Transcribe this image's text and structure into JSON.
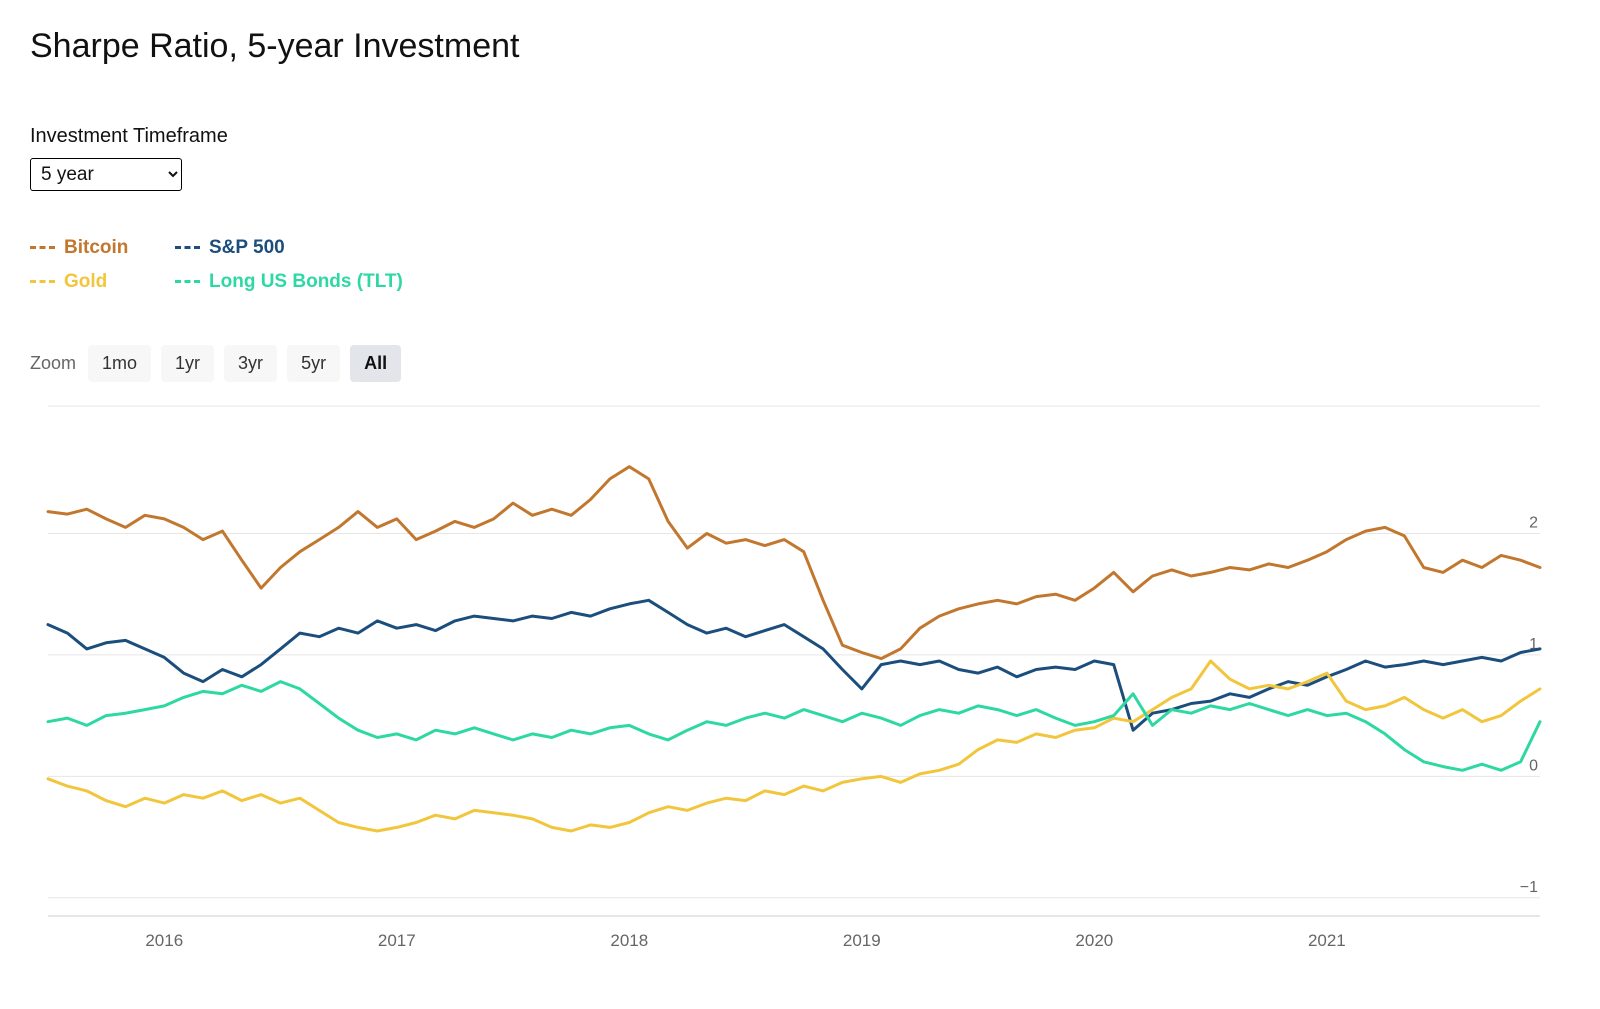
{
  "header": {
    "title": "Sharpe Ratio, 5-year Investment"
  },
  "controls": {
    "timeframe_label": "Investment Timeframe",
    "timeframe_value": "5 year"
  },
  "toolbar": {
    "zoom_label": "Zoom",
    "buttons": [
      {
        "label": "1mo",
        "active": false
      },
      {
        "label": "1yr",
        "active": false
      },
      {
        "label": "3yr",
        "active": false
      },
      {
        "label": "5yr",
        "active": false
      },
      {
        "label": "All",
        "active": true
      }
    ]
  },
  "chart_data": {
    "type": "line",
    "title": "Sharpe Ratio, 5-year Investment",
    "xlabel": "",
    "ylabel": "",
    "grid": true,
    "legend_position": "top-left",
    "x_start_decimal_year": 2015.5,
    "x_interval_months": 1,
    "points_per_series": 78,
    "xlim_decimal_years": [
      2015.5,
      2021.95
    ],
    "ylim": [
      -1.15,
      3.05
    ],
    "x_ticks": [
      {
        "index": 6,
        "label": "2016"
      },
      {
        "index": 18,
        "label": "2017"
      },
      {
        "index": 30,
        "label": "2018"
      },
      {
        "index": 42,
        "label": "2019"
      },
      {
        "index": 54,
        "label": "2020"
      },
      {
        "index": 66,
        "label": "2021"
      }
    ],
    "y_ticks": [
      2,
      1,
      0,
      -1
    ],
    "y_tick_labels": [
      "2",
      "1",
      "0",
      "−1"
    ],
    "series": [
      {
        "name": "Bitcoin",
        "color": "#c2772e",
        "values": [
          2.18,
          2.16,
          2.2,
          2.12,
          2.05,
          2.15,
          2.12,
          2.05,
          1.95,
          2.02,
          1.78,
          1.55,
          1.72,
          1.85,
          1.95,
          2.05,
          2.18,
          2.05,
          2.12,
          1.95,
          2.02,
          2.1,
          2.05,
          2.12,
          2.25,
          2.15,
          2.2,
          2.15,
          2.28,
          2.45,
          2.55,
          2.45,
          2.1,
          1.88,
          2.0,
          1.92,
          1.95,
          1.9,
          1.95,
          1.85,
          1.45,
          1.08,
          1.02,
          0.97,
          1.05,
          1.22,
          1.32,
          1.38,
          1.42,
          1.45,
          1.42,
          1.48,
          1.5,
          1.45,
          1.55,
          1.68,
          1.52,
          1.65,
          1.7,
          1.65,
          1.68,
          1.72,
          1.7,
          1.75,
          1.72,
          1.78,
          1.85,
          1.95,
          2.02,
          2.05,
          1.98,
          1.72,
          1.68,
          1.78,
          1.72,
          1.82,
          1.78,
          1.72
        ]
      },
      {
        "name": "S&P 500",
        "color": "#1c4e7d",
        "values": [
          1.25,
          1.18,
          1.05,
          1.1,
          1.12,
          1.05,
          0.98,
          0.85,
          0.78,
          0.88,
          0.82,
          0.92,
          1.05,
          1.18,
          1.15,
          1.22,
          1.18,
          1.28,
          1.22,
          1.25,
          1.2,
          1.28,
          1.32,
          1.3,
          1.28,
          1.32,
          1.3,
          1.35,
          1.32,
          1.38,
          1.42,
          1.45,
          1.35,
          1.25,
          1.18,
          1.22,
          1.15,
          1.2,
          1.25,
          1.15,
          1.05,
          0.88,
          0.72,
          0.92,
          0.95,
          0.92,
          0.95,
          0.88,
          0.85,
          0.9,
          0.82,
          0.88,
          0.9,
          0.88,
          0.95,
          0.92,
          0.38,
          0.52,
          0.55,
          0.6,
          0.62,
          0.68,
          0.65,
          0.72,
          0.78,
          0.75,
          0.82,
          0.88,
          0.95,
          0.9,
          0.92,
          0.95,
          0.92,
          0.95,
          0.98,
          0.95,
          1.02,
          1.05
        ]
      },
      {
        "name": "Gold",
        "color": "#f2c63c",
        "values": [
          -0.02,
          -0.08,
          -0.12,
          -0.2,
          -0.25,
          -0.18,
          -0.22,
          -0.15,
          -0.18,
          -0.12,
          -0.2,
          -0.15,
          -0.22,
          -0.18,
          -0.28,
          -0.38,
          -0.42,
          -0.45,
          -0.42,
          -0.38,
          -0.32,
          -0.35,
          -0.28,
          -0.3,
          -0.32,
          -0.35,
          -0.42,
          -0.45,
          -0.4,
          -0.42,
          -0.38,
          -0.3,
          -0.25,
          -0.28,
          -0.22,
          -0.18,
          -0.2,
          -0.12,
          -0.15,
          -0.08,
          -0.12,
          -0.05,
          -0.02,
          0.0,
          -0.05,
          0.02,
          0.05,
          0.1,
          0.22,
          0.3,
          0.28,
          0.35,
          0.32,
          0.38,
          0.4,
          0.48,
          0.45,
          0.55,
          0.65,
          0.72,
          0.95,
          0.8,
          0.72,
          0.75,
          0.72,
          0.78,
          0.85,
          0.62,
          0.55,
          0.58,
          0.65,
          0.55,
          0.48,
          0.55,
          0.45,
          0.5,
          0.62,
          0.72
        ]
      },
      {
        "name": "Long US Bonds (TLT)",
        "color": "#2ed8a3",
        "values": [
          0.45,
          0.48,
          0.42,
          0.5,
          0.52,
          0.55,
          0.58,
          0.65,
          0.7,
          0.68,
          0.75,
          0.7,
          0.78,
          0.72,
          0.6,
          0.48,
          0.38,
          0.32,
          0.35,
          0.3,
          0.38,
          0.35,
          0.4,
          0.35,
          0.3,
          0.35,
          0.32,
          0.38,
          0.35,
          0.4,
          0.42,
          0.35,
          0.3,
          0.38,
          0.45,
          0.42,
          0.48,
          0.52,
          0.48,
          0.55,
          0.5,
          0.45,
          0.52,
          0.48,
          0.42,
          0.5,
          0.55,
          0.52,
          0.58,
          0.55,
          0.5,
          0.55,
          0.48,
          0.42,
          0.45,
          0.5,
          0.68,
          0.42,
          0.55,
          0.52,
          0.58,
          0.55,
          0.6,
          0.55,
          0.5,
          0.55,
          0.5,
          0.52,
          0.45,
          0.35,
          0.22,
          0.12,
          0.08,
          0.05,
          0.1,
          0.05,
          0.12,
          0.45
        ]
      }
    ]
  }
}
